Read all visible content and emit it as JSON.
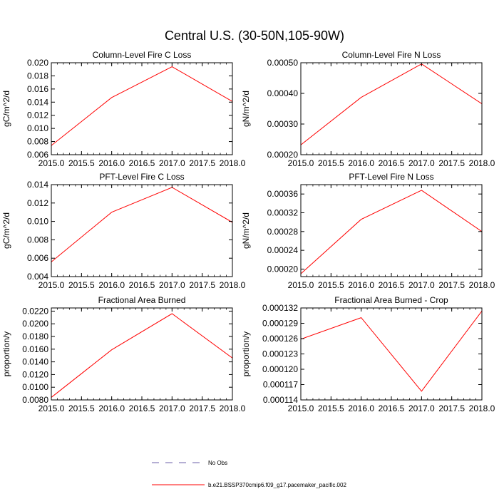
{
  "figure": {
    "title": "Central U.S. (30-50N,105-90W)",
    "legend": {
      "obs_label": "No Obs",
      "obs_color": "#6b5fa8",
      "model_label": "b.e21.BSSP370cmip6.f09_g17.pacemaker_pacific.002",
      "model_color": "#ff0000"
    }
  },
  "chart_data": [
    {
      "type": "line",
      "title": "Column-Level Fire C Loss",
      "ylabel": "gC/m^2/d",
      "xlim": [
        2015.0,
        2018.0
      ],
      "ylim": [
        0.006,
        0.02
      ],
      "xticks": [
        2015.0,
        2015.5,
        2016.0,
        2016.5,
        2017.0,
        2017.5,
        2018.0
      ],
      "xtick_labels": [
        "2015.0",
        "2015.5",
        "2016.0",
        "2016.5",
        "2017.0",
        "2017.5",
        "2018.0"
      ],
      "yticks": [
        0.006,
        0.008,
        0.01,
        0.012,
        0.014,
        0.016,
        0.018,
        0.02
      ],
      "ytick_labels": [
        "0.006",
        "0.008",
        "0.010",
        "0.012",
        "0.014",
        "0.016",
        "0.018",
        "0.020"
      ],
      "series": [
        {
          "x": [
            2015.0,
            2016.0,
            2017.0,
            2018.0
          ],
          "values": [
            0.0074,
            0.0147,
            0.0194,
            0.0141
          ]
        }
      ]
    },
    {
      "type": "line",
      "title": "Column-Level Fire N Loss",
      "ylabel": "gN/m^2/d",
      "xlim": [
        2015.0,
        2018.0
      ],
      "ylim": [
        0.0002,
        0.0005
      ],
      "xticks": [
        2015.0,
        2015.5,
        2016.0,
        2016.5,
        2017.0,
        2017.5,
        2018.0
      ],
      "xtick_labels": [
        "2015.0",
        "2015.5",
        "2016.0",
        "2016.5",
        "2017.0",
        "2017.5",
        "2018.0"
      ],
      "yticks": [
        0.0002,
        0.0003,
        0.0004,
        0.0005
      ],
      "ytick_labels": [
        "0.00020",
        "0.00030",
        "0.00040",
        "0.00050"
      ],
      "series": [
        {
          "x": [
            2015.0,
            2016.0,
            2017.0,
            2018.0
          ],
          "values": [
            0.000232,
            0.000387,
            0.000496,
            0.000366
          ]
        }
      ]
    },
    {
      "type": "line",
      "title": "PFT-Level Fire C Loss",
      "ylabel": "gC/m^2/d",
      "xlim": [
        2015.0,
        2018.0
      ],
      "ylim": [
        0.004,
        0.014
      ],
      "xticks": [
        2015.0,
        2015.5,
        2016.0,
        2016.5,
        2017.0,
        2017.5,
        2018.0
      ],
      "xtick_labels": [
        "2015.0",
        "2015.5",
        "2016.0",
        "2016.5",
        "2017.0",
        "2017.5",
        "2018.0"
      ],
      "yticks": [
        0.004,
        0.006,
        0.008,
        0.01,
        0.012,
        0.014
      ],
      "ytick_labels": [
        "0.004",
        "0.006",
        "0.008",
        "0.010",
        "0.012",
        "0.014"
      ],
      "series": [
        {
          "x": [
            2015.0,
            2016.0,
            2017.0,
            2018.0
          ],
          "values": [
            0.0056,
            0.011,
            0.0137,
            0.0099
          ]
        }
      ]
    },
    {
      "type": "line",
      "title": "PFT-Level Fire N Loss",
      "ylabel": "gN/m^2/d",
      "xlim": [
        2015.0,
        2018.0
      ],
      "ylim": [
        0.000184,
        0.00038
      ],
      "xticks": [
        2015.0,
        2015.5,
        2016.0,
        2016.5,
        2017.0,
        2017.5,
        2018.0
      ],
      "xtick_labels": [
        "2015.0",
        "2015.5",
        "2016.0",
        "2016.5",
        "2017.0",
        "2017.5",
        "2018.0"
      ],
      "yticks": [
        0.0002,
        0.00024,
        0.00028,
        0.00032,
        0.00036
      ],
      "ytick_labels": [
        "0.00020",
        "0.00024",
        "0.00028",
        "0.00032",
        "0.00036"
      ],
      "series": [
        {
          "x": [
            2015.0,
            2016.0,
            2017.0,
            2018.0
          ],
          "values": [
            0.00019,
            0.000306,
            0.000368,
            0.00028
          ]
        }
      ]
    },
    {
      "type": "line",
      "title": "Fractional Area Burned",
      "ylabel": "proportion/y",
      "xlim": [
        2015.0,
        2018.0
      ],
      "ylim": [
        0.008,
        0.0225
      ],
      "xticks": [
        2015.0,
        2015.5,
        2016.0,
        2016.5,
        2017.0,
        2017.5,
        2018.0
      ],
      "xtick_labels": [
        "2015.0",
        "2015.5",
        "2016.0",
        "2016.5",
        "2017.0",
        "2017.5",
        "2018.0"
      ],
      "yticks": [
        0.008,
        0.01,
        0.012,
        0.014,
        0.016,
        0.018,
        0.02,
        0.022
      ],
      "ytick_labels": [
        "0.0080",
        "0.0100",
        "0.0120",
        "0.0140",
        "0.0160",
        "0.0180",
        "0.0200",
        "0.0220"
      ],
      "series": [
        {
          "x": [
            2015.0,
            2016.0,
            2017.0,
            2018.0
          ],
          "values": [
            0.0084,
            0.0159,
            0.0216,
            0.0146
          ]
        }
      ]
    },
    {
      "type": "line",
      "title": "Fractional Area Burned - Crop",
      "ylabel": "proportion/y",
      "xlim": [
        2015.0,
        2018.0
      ],
      "ylim": [
        0.000114,
        0.000132
      ],
      "xticks": [
        2015.0,
        2015.5,
        2016.0,
        2016.5,
        2017.0,
        2017.5,
        2018.0
      ],
      "xtick_labels": [
        "2015.0",
        "2015.5",
        "2016.0",
        "2016.5",
        "2017.0",
        "2017.5",
        "2018.0"
      ],
      "yticks": [
        0.000114,
        0.000117,
        0.00012,
        0.000123,
        0.000126,
        0.000129,
        0.000132
      ],
      "ytick_labels": [
        "0.000114",
        "0.000117",
        "0.000120",
        "0.000123",
        "0.000126",
        "0.000129",
        "0.000132"
      ],
      "series": [
        {
          "x": [
            2015.0,
            2016.0,
            2017.0,
            2018.0
          ],
          "values": [
            0.0001259,
            0.0001301,
            0.0001157,
            0.0001314
          ]
        }
      ]
    }
  ]
}
